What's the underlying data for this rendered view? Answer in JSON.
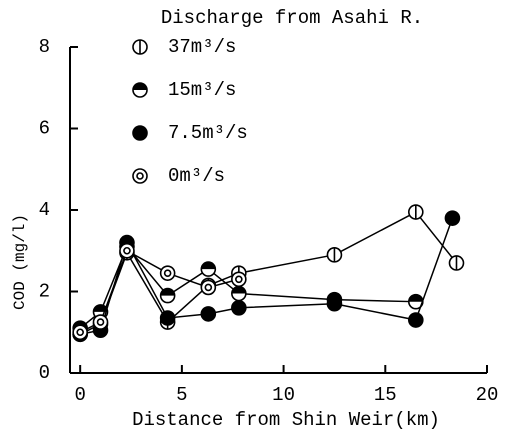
{
  "chart_data": {
    "type": "line",
    "legend_title": "Discharge from Asahi R.",
    "x_label": "Distance from Shin Weir(km)",
    "y_label": "COD (mg/l)",
    "xlim": [
      -0.5,
      20
    ],
    "xticks": [
      0,
      5,
      10,
      15,
      20
    ],
    "ylim": [
      0,
      8
    ],
    "yticks": [
      0,
      2,
      4,
      6,
      8
    ],
    "series": [
      {
        "name": "37m³/s",
        "marker": "circle-vline",
        "color": "#000000",
        "x": [
          0,
          1,
          2.3,
          4.3,
          6.3,
          7.8,
          12.5,
          16.5,
          18.5
        ],
        "values": [
          0.95,
          1.2,
          2.95,
          1.25,
          2.15,
          2.45,
          2.9,
          3.95,
          2.7
        ]
      },
      {
        "name": "15m³/s",
        "marker": "circle-half",
        "color": "#000000",
        "x": [
          0,
          1,
          2.3,
          4.3,
          6.3,
          7.8,
          12.5,
          16.5
        ],
        "values": [
          1.1,
          1.5,
          3.1,
          1.9,
          2.55,
          1.95,
          1.8,
          1.75
        ]
      },
      {
        "name": "7.5m³/s",
        "marker": "circle-filled",
        "color": "#000000",
        "x": [
          0,
          1,
          2.3,
          4.3,
          6.3,
          7.8,
          12.5,
          16.5,
          18.3
        ],
        "values": [
          0.95,
          1.05,
          3.2,
          1.35,
          1.45,
          1.6,
          1.7,
          1.3,
          3.8
        ]
      },
      {
        "name": "0m³/s",
        "marker": "circle-double",
        "color": "#000000",
        "x": [
          0,
          1,
          2.3,
          4.3,
          6.3,
          7.8
        ],
        "values": [
          1.0,
          1.25,
          3.0,
          2.45,
          2.1,
          2.3
        ]
      }
    ]
  }
}
